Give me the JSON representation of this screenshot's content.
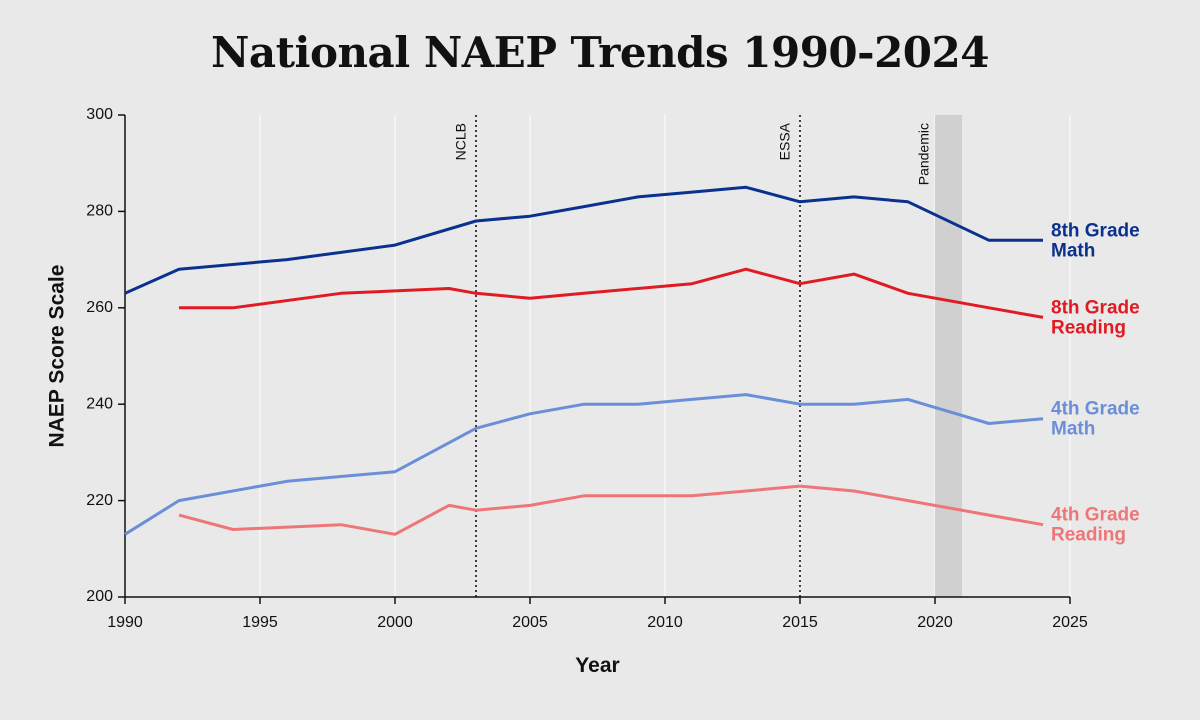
{
  "chart_data": {
    "type": "line",
    "title": "National NAEP Trends 1990-2024",
    "xlabel": "Year",
    "ylabel": "NAEP Score Scale",
    "xlim": [
      1990,
      2025
    ],
    "ylim": [
      200,
      300
    ],
    "x_ticks": [
      1990,
      1995,
      2000,
      2005,
      2010,
      2015,
      2020,
      2025
    ],
    "y_ticks": [
      200,
      220,
      240,
      260,
      280,
      300
    ],
    "grid": "vertical",
    "legend": "direct labels at right end of lines",
    "events": [
      {
        "label": "NCLB",
        "x": 2003,
        "style": "dotted-line"
      },
      {
        "label": "ESSA",
        "x": 2015,
        "style": "dotted-line"
      },
      {
        "label": "Pandemic",
        "x_start": 2020,
        "x_end": 2021,
        "style": "shaded-band"
      }
    ],
    "series": [
      {
        "name": "8th Grade Math",
        "color": "#0b318f",
        "points": [
          [
            1990,
            263
          ],
          [
            1992,
            268
          ],
          [
            1996,
            270
          ],
          [
            2000,
            273
          ],
          [
            2003,
            278
          ],
          [
            2005,
            279
          ],
          [
            2007,
            281
          ],
          [
            2009,
            283
          ],
          [
            2011,
            284
          ],
          [
            2013,
            285
          ],
          [
            2015,
            282
          ],
          [
            2017,
            283
          ],
          [
            2019,
            282
          ],
          [
            2022,
            274
          ],
          [
            2024,
            274
          ]
        ]
      },
      {
        "name": "8th Grade Reading",
        "color": "#e01b23",
        "points": [
          [
            1992,
            260
          ],
          [
            1994,
            260
          ],
          [
            1998,
            263
          ],
          [
            2002,
            264
          ],
          [
            2003,
            263
          ],
          [
            2005,
            262
          ],
          [
            2007,
            263
          ],
          [
            2009,
            264
          ],
          [
            2011,
            265
          ],
          [
            2013,
            268
          ],
          [
            2015,
            265
          ],
          [
            2017,
            267
          ],
          [
            2019,
            263
          ],
          [
            2022,
            260
          ],
          [
            2024,
            258
          ]
        ]
      },
      {
        "name": "4th Grade Math",
        "color": "#6a8fd8",
        "points": [
          [
            1990,
            213
          ],
          [
            1992,
            220
          ],
          [
            1996,
            224
          ],
          [
            2000,
            226
          ],
          [
            2003,
            235
          ],
          [
            2005,
            238
          ],
          [
            2007,
            240
          ],
          [
            2009,
            240
          ],
          [
            2011,
            241
          ],
          [
            2013,
            242
          ],
          [
            2015,
            240
          ],
          [
            2017,
            240
          ],
          [
            2019,
            241
          ],
          [
            2022,
            236
          ],
          [
            2024,
            237
          ]
        ]
      },
      {
        "name": "4th Grade Reading",
        "color": "#ee7679",
        "points": [
          [
            1992,
            217
          ],
          [
            1994,
            214
          ],
          [
            1998,
            215
          ],
          [
            2000,
            213
          ],
          [
            2002,
            219
          ],
          [
            2003,
            218
          ],
          [
            2005,
            219
          ],
          [
            2007,
            221
          ],
          [
            2009,
            221
          ],
          [
            2011,
            221
          ],
          [
            2013,
            222
          ],
          [
            2015,
            223
          ],
          [
            2017,
            222
          ],
          [
            2019,
            220
          ],
          [
            2022,
            217
          ],
          [
            2024,
            215
          ]
        ]
      }
    ],
    "series_labels": [
      {
        "series": "8th Grade Math",
        "lines": [
          "8th Grade",
          "Math"
        ]
      },
      {
        "series": "8th Grade Reading",
        "lines": [
          "8th Grade",
          "Reading"
        ]
      },
      {
        "series": "4th Grade Math",
        "lines": [
          "4th Grade",
          "Math"
        ]
      },
      {
        "series": "4th Grade Reading",
        "lines": [
          "4th Grade",
          "Reading"
        ]
      }
    ]
  }
}
